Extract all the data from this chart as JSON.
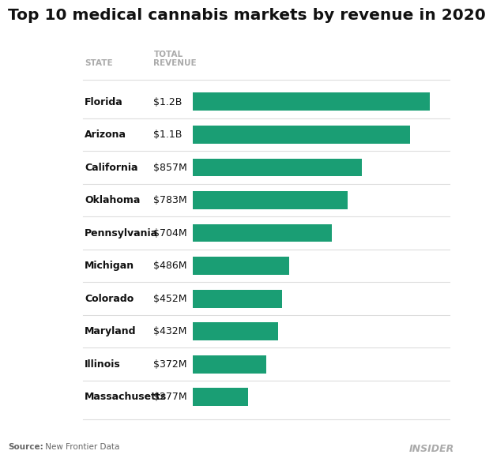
{
  "title": "Top 10 medical cannabis markets by revenue in 2020",
  "states": [
    "Florida",
    "Arizona",
    "California",
    "Oklahoma",
    "Pennsylvania",
    "Michigan",
    "Colorado",
    "Maryland",
    "Illinois",
    "Massachusetts"
  ],
  "labels": [
    "$1.2B",
    "$1.1B",
    "$857M",
    "$783M",
    "$704M",
    "$486M",
    "$452M",
    "$432M",
    "$372M",
    "$277M"
  ],
  "values": [
    1200,
    1100,
    857,
    783,
    704,
    486,
    452,
    432,
    372,
    277
  ],
  "bar_color": "#1a9e74",
  "col_header_state": "STATE",
  "col_header_revenue": "TOTAL\nREVENUE",
  "source_bold": "Source:",
  "source_rest": " New Frontier Data",
  "watermark": "INSIDER",
  "background_color": "#ffffff",
  "title_fontsize": 14.5,
  "bar_height": 0.55,
  "xlim_max": 1300,
  "separator_color": "#dddddd",
  "header_color": "#aaaaaa",
  "text_color": "#111111",
  "source_color": "#666666"
}
